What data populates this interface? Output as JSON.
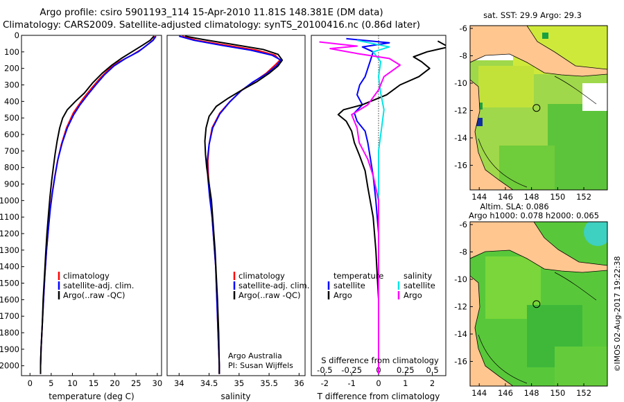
{
  "title": {
    "line1": "Argo profile: csiro 5901193_114 15-Apr-2010 11.81S 148.381E (DM data)",
    "line2": "Climatology: CARS2009. Satellite-adjusted climatology: synTS_20100416.nc (0.86d later)"
  },
  "chart_data": [
    {
      "type": "line",
      "name": "temperature-profile",
      "xlabel": "temperature (deg C)",
      "ylabel": "",
      "xlim": [
        -2,
        31
      ],
      "ylim": [
        0,
        2060
      ],
      "y_reversed": true,
      "xticks": [
        0,
        5,
        10,
        15,
        20,
        25,
        30
      ],
      "yticks": [
        0,
        100,
        200,
        300,
        400,
        500,
        600,
        700,
        800,
        900,
        1000,
        1100,
        1200,
        1300,
        1400,
        1500,
        1600,
        1700,
        1800,
        1900,
        2000
      ],
      "legend": [
        "climatology",
        "satellite-adj. clim.",
        "Argo(..raw -QC)"
      ],
      "series": [
        {
          "name": "climatology",
          "color": "#ff0000",
          "points": [
            [
              29.4,
              5
            ],
            [
              29.1,
              25
            ],
            [
              28.0,
              50
            ],
            [
              26.5,
              80
            ],
            [
              24.0,
              120
            ],
            [
              21.0,
              160
            ],
            [
              18.8,
              200
            ],
            [
              16.5,
              260
            ],
            [
              14.5,
              320
            ],
            [
              12.6,
              380
            ],
            [
              10.2,
              470
            ],
            [
              8.6,
              560
            ],
            [
              7.4,
              660
            ],
            [
              6.5,
              760
            ],
            [
              5.8,
              860
            ],
            [
              5.2,
              960
            ],
            [
              4.7,
              1060
            ],
            [
              4.3,
              1180
            ],
            [
              3.9,
              1300
            ],
            [
              3.5,
              1450
            ],
            [
              3.2,
              1600
            ],
            [
              2.9,
              1750
            ],
            [
              2.6,
              1900
            ],
            [
              2.5,
              2000
            ],
            [
              2.5,
              2050
            ]
          ]
        },
        {
          "name": "satellite-adj. clim.",
          "color": "#0000ff",
          "points": [
            [
              29.7,
              5
            ],
            [
              29.0,
              30
            ],
            [
              27.5,
              60
            ],
            [
              25.5,
              100
            ],
            [
              22.5,
              140
            ],
            [
              19.8,
              185
            ],
            [
              17.5,
              240
            ],
            [
              15.5,
              300
            ],
            [
              13.6,
              360
            ],
            [
              11.8,
              420
            ],
            [
              10.3,
              480
            ],
            [
              8.8,
              560
            ],
            [
              7.6,
              650
            ],
            [
              6.6,
              750
            ],
            [
              5.9,
              850
            ],
            [
              5.3,
              950
            ],
            [
              4.8,
              1050
            ],
            [
              4.3,
              1180
            ],
            [
              3.9,
              1300
            ],
            [
              3.5,
              1450
            ],
            [
              3.2,
              1600
            ],
            [
              2.9,
              1750
            ],
            [
              2.6,
              1900
            ],
            [
              2.5,
              2000
            ],
            [
              2.5,
              2050
            ]
          ]
        },
        {
          "name": "Argo(..raw -QC)",
          "color": "#000000",
          "points": [
            [
              29.2,
              5
            ],
            [
              28.3,
              30
            ],
            [
              26.5,
              60
            ],
            [
              24.0,
              100
            ],
            [
              21.5,
              140
            ],
            [
              19.3,
              180
            ],
            [
              17.0,
              230
            ],
            [
              14.7,
              290
            ],
            [
              12.8,
              350
            ],
            [
              10.7,
              400
            ],
            [
              8.8,
              450
            ],
            [
              7.7,
              500
            ],
            [
              7.0,
              560
            ],
            [
              6.4,
              640
            ],
            [
              5.9,
              720
            ],
            [
              5.5,
              800
            ],
            [
              5.1,
              880
            ],
            [
              4.7,
              980
            ],
            [
              4.3,
              1100
            ],
            [
              4.0,
              1200
            ],
            [
              3.7,
              1320
            ],
            [
              3.4,
              1460
            ],
            [
              3.1,
              1600
            ],
            [
              2.9,
              1750
            ],
            [
              2.6,
              1900
            ],
            [
              2.5,
              2000
            ],
            [
              2.5,
              2050
            ]
          ]
        }
      ]
    },
    {
      "type": "line",
      "name": "salinity-profile",
      "xlabel": "salinity",
      "xlim": [
        33.8,
        36.1
      ],
      "ylim": [
        0,
        2060
      ],
      "y_reversed": true,
      "xticks": [
        34,
        34.5,
        35,
        35.5,
        36
      ],
      "legend": [
        "climatology",
        "satellite-adj. clim.",
        "Argo(..raw -QC)"
      ],
      "annotation": [
        "Argo Australia",
        "PI: Susan Wijffels"
      ],
      "series": [
        {
          "name": "climatology",
          "color": "#ff0000",
          "points": [
            [
              34.05,
              5
            ],
            [
              34.3,
              30
            ],
            [
              34.8,
              60
            ],
            [
              35.3,
              90
            ],
            [
              35.6,
              120
            ],
            [
              35.68,
              150
            ],
            [
              35.6,
              180
            ],
            [
              35.45,
              230
            ],
            [
              35.25,
              280
            ],
            [
              35.05,
              330
            ],
            [
              34.85,
              400
            ],
            [
              34.68,
              470
            ],
            [
              34.55,
              560
            ],
            [
              34.5,
              660
            ],
            [
              34.48,
              760
            ],
            [
              34.49,
              860
            ],
            [
              34.52,
              980
            ],
            [
              34.55,
              1100
            ],
            [
              34.58,
              1250
            ],
            [
              34.61,
              1400
            ],
            [
              34.63,
              1600
            ],
            [
              34.65,
              1800
            ],
            [
              34.67,
              2000
            ],
            [
              34.67,
              2050
            ]
          ]
        },
        {
          "name": "satellite-adj. clim.",
          "color": "#0000ff",
          "points": [
            [
              34.0,
              5
            ],
            [
              34.25,
              30
            ],
            [
              34.7,
              60
            ],
            [
              35.2,
              90
            ],
            [
              35.55,
              120
            ],
            [
              35.7,
              150
            ],
            [
              35.62,
              185
            ],
            [
              35.45,
              235
            ],
            [
              35.22,
              285
            ],
            [
              35.02,
              340
            ],
            [
              34.84,
              405
            ],
            [
              34.68,
              475
            ],
            [
              34.56,
              560
            ],
            [
              34.5,
              660
            ],
            [
              34.47,
              760
            ],
            [
              34.48,
              860
            ],
            [
              34.51,
              980
            ],
            [
              34.55,
              1100
            ],
            [
              34.58,
              1250
            ],
            [
              34.61,
              1400
            ],
            [
              34.63,
              1600
            ],
            [
              34.65,
              1800
            ],
            [
              34.67,
              2000
            ],
            [
              34.67,
              2050
            ]
          ]
        },
        {
          "name": "Argo(..raw -QC)",
          "color": "#000000",
          "points": [
            [
              34.1,
              5
            ],
            [
              34.4,
              25
            ],
            [
              34.9,
              55
            ],
            [
              35.4,
              85
            ],
            [
              35.65,
              115
            ],
            [
              35.72,
              150
            ],
            [
              35.65,
              185
            ],
            [
              35.5,
              230
            ],
            [
              35.3,
              280
            ],
            [
              35.05,
              330
            ],
            [
              34.82,
              380
            ],
            [
              34.62,
              430
            ],
            [
              34.5,
              490
            ],
            [
              34.45,
              560
            ],
            [
              34.43,
              640
            ],
            [
              34.44,
              720
            ],
            [
              34.46,
              800
            ],
            [
              34.5,
              900
            ],
            [
              34.54,
              1000
            ],
            [
              34.57,
              1150
            ],
            [
              34.6,
              1300
            ],
            [
              34.62,
              1450
            ],
            [
              34.64,
              1600
            ],
            [
              34.66,
              1800
            ],
            [
              34.67,
              2000
            ],
            [
              34.67,
              2050
            ]
          ]
        }
      ]
    },
    {
      "type": "line",
      "name": "difference-profile",
      "xlabel_bottom": "T difference from climatology",
      "xlabel_top": "S difference from climatology",
      "xlim": [
        -2.5,
        2.5
      ],
      "xlim_top": [
        -0.625,
        0.625
      ],
      "ylim": [
        0,
        2060
      ],
      "y_reversed": true,
      "xticks_bottom": [
        -2,
        -1,
        0,
        1,
        2
      ],
      "xticks_top": [
        -0.5,
        -0.25,
        0,
        0.25,
        0.5
      ],
      "legend_temperature": [
        "temperature",
        "satellite",
        "Argo"
      ],
      "legend_salinity": [
        "salinity",
        "satellite",
        "Argo"
      ],
      "series": [
        {
          "name": "temperature satellite",
          "axis": "T",
          "color": "#0000ff",
          "points": [
            [
              -1.2,
              20
            ],
            [
              0.4,
              45
            ],
            [
              -0.6,
              70
            ],
            [
              -0.2,
              100
            ],
            [
              -0.3,
              150
            ],
            [
              -0.4,
              200
            ],
            [
              -0.5,
              250
            ],
            [
              -0.7,
              300
            ],
            [
              -0.8,
              360
            ],
            [
              -0.6,
              420
            ],
            [
              -0.9,
              470
            ],
            [
              -0.8,
              520
            ],
            [
              -0.5,
              580
            ],
            [
              -0.4,
              650
            ],
            [
              -0.3,
              750
            ],
            [
              -0.2,
              850
            ],
            [
              -0.1,
              1000
            ],
            [
              0.0,
              1200
            ],
            [
              0.0,
              1500
            ],
            [
              0.0,
              2050
            ]
          ]
        },
        {
          "name": "temperature Argo",
          "axis": "T",
          "color": "#000000",
          "points": [
            [
              2.2,
              35
            ],
            [
              2.6,
              70
            ],
            [
              1.8,
              100
            ],
            [
              1.3,
              130
            ],
            [
              1.6,
              160
            ],
            [
              1.9,
              200
            ],
            [
              1.5,
              250
            ],
            [
              0.8,
              300
            ],
            [
              0.3,
              360
            ],
            [
              -0.6,
              420
            ],
            [
              -1.3,
              450
            ],
            [
              -1.5,
              480
            ],
            [
              -1.2,
              520
            ],
            [
              -1.0,
              580
            ],
            [
              -0.9,
              650
            ],
            [
              -0.7,
              730
            ],
            [
              -0.5,
              820
            ],
            [
              -0.4,
              920
            ],
            [
              -0.2,
              1100
            ],
            [
              -0.1,
              1300
            ],
            [
              0.0,
              1600
            ],
            [
              0.0,
              2050
            ]
          ]
        },
        {
          "name": "salinity satellite",
          "axis": "S",
          "color": "#00e5e5",
          "points": [
            [
              -0.2,
              30
            ],
            [
              0.1,
              70
            ],
            [
              -0.05,
              100
            ],
            [
              0.02,
              160
            ],
            [
              0.0,
              250
            ],
            [
              0.02,
              350
            ],
            [
              0.05,
              450
            ],
            [
              0.03,
              550
            ],
            [
              0.0,
              700
            ],
            [
              0.0,
              1000
            ],
            [
              0.0,
              2050
            ]
          ]
        },
        {
          "name": "salinity Argo",
          "axis": "S",
          "color": "#ff00ff",
          "points": [
            [
              -0.55,
              40
            ],
            [
              -0.2,
              65
            ],
            [
              -0.45,
              80
            ],
            [
              -0.2,
              110
            ],
            [
              0.1,
              140
            ],
            [
              0.2,
              180
            ],
            [
              0.05,
              250
            ],
            [
              0.0,
              330
            ],
            [
              -0.1,
              420
            ],
            [
              -0.25,
              480
            ],
            [
              -0.2,
              560
            ],
            [
              -0.18,
              650
            ],
            [
              -0.1,
              750
            ],
            [
              -0.05,
              850
            ],
            [
              0.0,
              1000
            ],
            [
              0.0,
              2050
            ]
          ]
        }
      ]
    },
    {
      "type": "heatmap",
      "name": "sst-map",
      "title": "sat. SST: 29.9  Argo: 29.3",
      "xlim": [
        143.3,
        153.8
      ],
      "ylim": [
        -17.8,
        -5.8
      ],
      "xticks": [
        144,
        146,
        148,
        150,
        152
      ],
      "yticks": [
        -6,
        -8,
        -10,
        -12,
        -14,
        -16
      ],
      "marker": {
        "lon": 148.381,
        "lat": -11.81
      }
    },
    {
      "type": "heatmap",
      "name": "sla-map",
      "title": "Altim. SLA: 0.086",
      "subtitle": "Argo h1000: 0.078 h2000: 0.065",
      "xlim": [
        143.3,
        153.8
      ],
      "ylim": [
        -17.8,
        -5.8
      ],
      "xticks": [
        144,
        146,
        148,
        150,
        152
      ],
      "yticks": [
        -6,
        -8,
        -10,
        -12,
        -14,
        -16
      ],
      "marker": {
        "lon": 148.381,
        "lat": -11.81
      }
    }
  ],
  "credit": "©IMOS 02-Aug-2017 19:22:38"
}
